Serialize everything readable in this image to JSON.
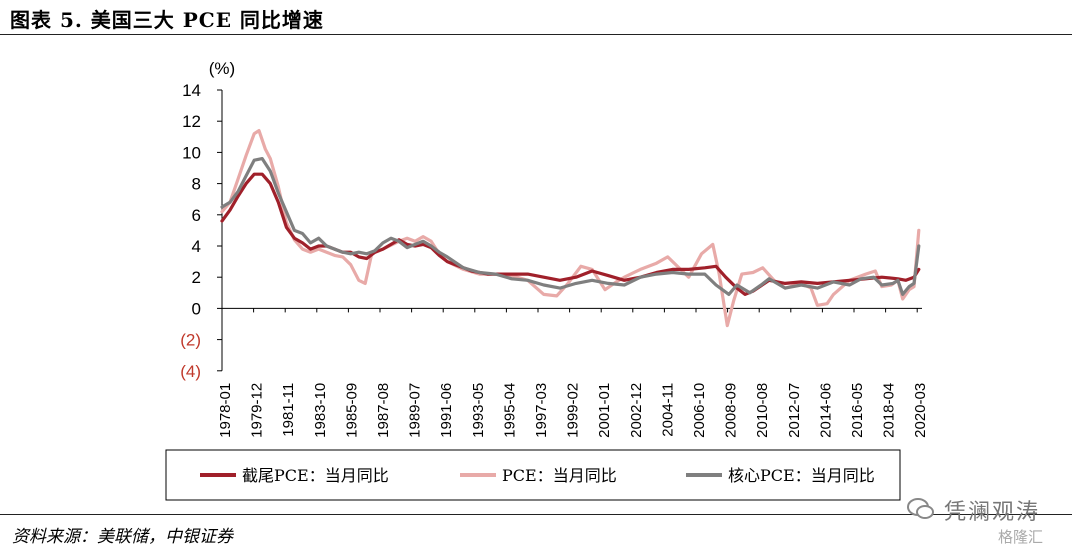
{
  "header": {
    "title": "图表 5. 美国三大 PCE 同比增速"
  },
  "footer": {
    "source": "资料来源：美联储，中银证券"
  },
  "watermark": {
    "text": "凭澜观涛",
    "sub": "格隆汇"
  },
  "colors": {
    "trimmed": "#a0202a",
    "pce": "#e8aaa8",
    "core": "#7f7f7f",
    "axis": "#000000",
    "negative": "#c0392b"
  },
  "chart_data": {
    "type": "line",
    "title": "",
    "unit_label": "(%)",
    "ylim": [
      -4,
      14
    ],
    "y_ticks": [
      14,
      12,
      10,
      8,
      6,
      4,
      2,
      0,
      -2,
      -4
    ],
    "y_tick_labels": [
      "14",
      "12",
      "10",
      "8",
      "6",
      "4",
      "2",
      "0",
      "(2)",
      "(4)"
    ],
    "x_tick_labels": [
      "1978-01",
      "1979-12",
      "1981-11",
      "1983-10",
      "1985-09",
      "1987-08",
      "1989-07",
      "1991-06",
      "1993-05",
      "1995-04",
      "1997-03",
      "1999-02",
      "2001-01",
      "2002-12",
      "2004-11",
      "2006-10",
      "2008-09",
      "2010-08",
      "2012-07",
      "2014-06",
      "2016-05",
      "2018-04",
      "2020-03"
    ],
    "x_range": [
      1978.0,
      2021.5
    ],
    "grid": false,
    "legend_position": "bottom",
    "series": [
      {
        "name": "截尾PCE：当月同比",
        "color": "#a0202a",
        "x": [
          1978.0,
          1978.5,
          1979.0,
          1979.5,
          1980.0,
          1980.5,
          1981.0,
          1981.5,
          1982.0,
          1982.5,
          1983.0,
          1983.5,
          1984.0,
          1984.5,
          1985.0,
          1985.5,
          1986.0,
          1986.5,
          1987.0,
          1987.5,
          1988.0,
          1988.5,
          1989.0,
          1989.5,
          1990.0,
          1990.5,
          1991.0,
          1991.5,
          1992.0,
          1992.5,
          1993.0,
          1993.5,
          1994.0,
          1994.5,
          1995.0,
          1996.0,
          1997.0,
          1998.0,
          1999.0,
          2000.0,
          2001.0,
          2002.0,
          2003.0,
          2004.0,
          2005.0,
          2006.0,
          2007.0,
          2008.0,
          2008.7,
          2009.3,
          2010.0,
          2010.5,
          2011.0,
          2012.0,
          2013.0,
          2014.0,
          2015.0,
          2016.0,
          2017.0,
          2018.0,
          2019.0,
          2020.0,
          2020.5,
          2021.0,
          2021.3
        ],
        "values": [
          5.6,
          6.3,
          7.2,
          8.0,
          8.6,
          8.6,
          8.0,
          6.8,
          5.2,
          4.5,
          4.2,
          3.8,
          4.0,
          4.0,
          3.8,
          3.6,
          3.6,
          3.3,
          3.2,
          3.6,
          3.8,
          4.1,
          4.4,
          4.1,
          4.0,
          4.1,
          3.9,
          3.4,
          3.0,
          2.8,
          2.6,
          2.4,
          2.3,
          2.2,
          2.2,
          2.2,
          2.2,
          2.0,
          1.8,
          2.0,
          2.4,
          2.1,
          1.8,
          2.0,
          2.3,
          2.5,
          2.5,
          2.6,
          2.7,
          2.0,
          1.3,
          0.9,
          1.1,
          1.8,
          1.6,
          1.7,
          1.6,
          1.7,
          1.8,
          1.9,
          2.0,
          1.9,
          1.8,
          2.0,
          2.5
        ]
      },
      {
        "name": "PCE：当月同比",
        "color": "#e8aaa8",
        "x": [
          1978.0,
          1978.5,
          1979.0,
          1979.5,
          1980.0,
          1980.3,
          1980.7,
          1981.0,
          1981.5,
          1982.0,
          1982.5,
          1983.0,
          1983.5,
          1984.0,
          1984.5,
          1985.0,
          1985.5,
          1986.0,
          1986.5,
          1986.9,
          1987.3,
          1988.0,
          1989.0,
          1989.5,
          1990.0,
          1990.5,
          1991.0,
          1991.5,
          1992.0,
          1993.0,
          1994.0,
          1995.0,
          1996.0,
          1997.0,
          1998.0,
          1998.8,
          1999.5,
          2000.3,
          2001.0,
          2001.8,
          2002.5,
          2003.0,
          2004.0,
          2005.0,
          2005.7,
          2006.5,
          2007.0,
          2007.8,
          2008.5,
          2008.9,
          2009.4,
          2009.8,
          2010.3,
          2011.0,
          2011.6,
          2012.3,
          2013.0,
          2014.0,
          2014.6,
          2015.0,
          2015.6,
          2016.0,
          2017.0,
          2018.0,
          2018.6,
          2019.0,
          2019.6,
          2020.0,
          2020.3,
          2020.7,
          2021.0,
          2021.3
        ],
        "values": [
          6.2,
          6.8,
          8.3,
          9.8,
          11.2,
          11.4,
          10.2,
          9.6,
          7.8,
          5.5,
          4.4,
          3.8,
          3.6,
          3.8,
          3.6,
          3.4,
          3.3,
          2.8,
          1.8,
          1.6,
          3.5,
          3.8,
          4.3,
          4.5,
          4.3,
          4.6,
          4.3,
          3.5,
          3.0,
          2.5,
          2.2,
          2.2,
          2.1,
          1.8,
          0.9,
          0.8,
          1.6,
          2.7,
          2.5,
          1.2,
          1.7,
          2.0,
          2.5,
          2.9,
          3.3,
          2.5,
          2.0,
          3.5,
          4.1,
          2.2,
          -1.1,
          0.5,
          2.2,
          2.3,
          2.6,
          1.8,
          1.3,
          1.6,
          1.3,
          0.2,
          0.3,
          0.9,
          1.8,
          2.2,
          2.4,
          1.4,
          1.5,
          1.8,
          0.6,
          1.2,
          1.4,
          5.0
        ]
      },
      {
        "name": "核心PCE：当月同比",
        "color": "#7f7f7f",
        "x": [
          1978.0,
          1978.5,
          1979.0,
          1979.5,
          1980.0,
          1980.5,
          1981.0,
          1981.5,
          1982.0,
          1982.5,
          1983.0,
          1983.5,
          1984.0,
          1984.5,
          1985.0,
          1985.5,
          1986.0,
          1986.5,
          1987.0,
          1987.5,
          1988.0,
          1988.5,
          1989.0,
          1989.5,
          1990.0,
          1990.5,
          1991.0,
          1991.5,
          1992.0,
          1993.0,
          1994.0,
          1995.0,
          1996.0,
          1997.0,
          1998.0,
          1999.0,
          2000.0,
          2001.0,
          2002.0,
          2003.0,
          2004.0,
          2005.0,
          2006.0,
          2007.0,
          2008.0,
          2008.7,
          2009.5,
          2010.0,
          2010.8,
          2011.5,
          2012.0,
          2013.0,
          2014.0,
          2015.0,
          2016.0,
          2017.0,
          2017.7,
          2018.5,
          2019.0,
          2019.7,
          2020.0,
          2020.3,
          2020.7,
          2021.0,
          2021.3
        ],
        "values": [
          6.5,
          6.8,
          7.5,
          8.5,
          9.5,
          9.6,
          8.8,
          7.4,
          6.2,
          5.0,
          4.8,
          4.2,
          4.5,
          4.0,
          3.8,
          3.6,
          3.5,
          3.6,
          3.5,
          3.7,
          4.2,
          4.5,
          4.3,
          3.9,
          4.1,
          4.3,
          4.0,
          3.6,
          3.3,
          2.6,
          2.3,
          2.2,
          1.9,
          1.8,
          1.5,
          1.3,
          1.6,
          1.8,
          1.6,
          1.5,
          2.0,
          2.2,
          2.3,
          2.2,
          2.2,
          1.5,
          0.9,
          1.5,
          1.0,
          1.5,
          1.9,
          1.3,
          1.5,
          1.3,
          1.7,
          1.5,
          1.9,
          2.0,
          1.5,
          1.6,
          1.8,
          0.9,
          1.4,
          1.6,
          4.0
        ]
      }
    ]
  }
}
